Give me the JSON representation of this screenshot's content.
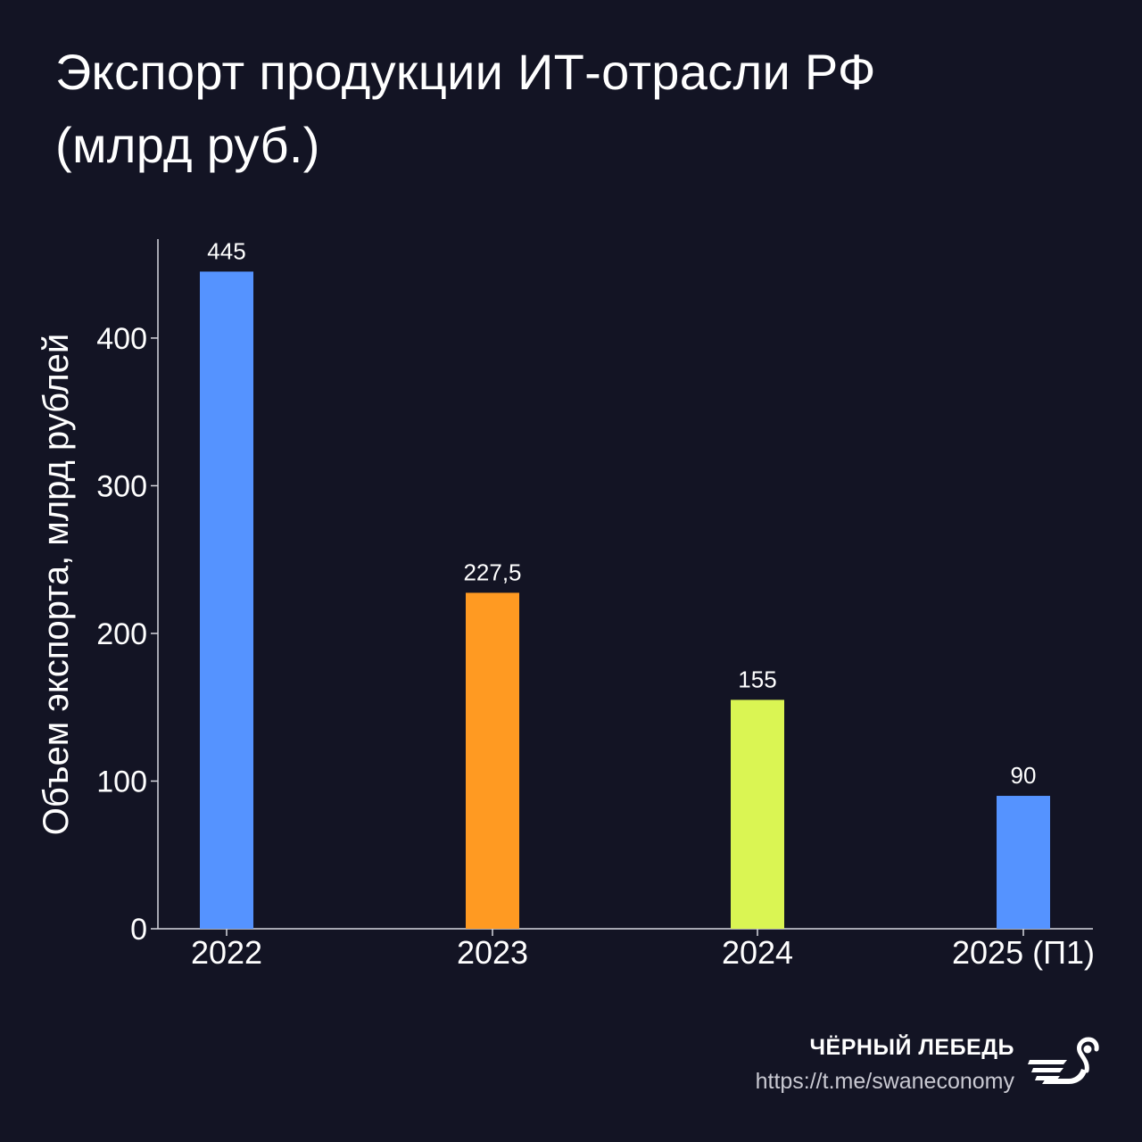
{
  "title": {
    "line1": "Экспорт продукции ИТ-отрасли РФ",
    "line2": "(млрд руб.)"
  },
  "chart_data": {
    "type": "bar",
    "title": "Экспорт продукции ИТ-отрасли РФ (млрд руб.)",
    "xlabel": "",
    "ylabel": "Объем экспорта, млрд рублей",
    "categories": [
      "2022",
      "2023",
      "2024",
      "2025 (П1)"
    ],
    "values": [
      445,
      227.5,
      155,
      90
    ],
    "value_labels": [
      "445",
      "227,5",
      "155",
      "90"
    ],
    "bar_colors": [
      "#5593FF",
      "#FF9A22",
      "#DAF553",
      "#5593FF"
    ],
    "yticks": [
      "0",
      "100",
      "200",
      "300",
      "400"
    ],
    "ylim": [
      0,
      467
    ],
    "grid": false,
    "legend": "none"
  },
  "brand": {
    "name": "ЧЁРНЫЙ ЛЕБЕДЬ",
    "url": "https://t.me/swaneconomy",
    "logo_icon": "swan-logo-icon"
  },
  "colors": {
    "background": "#131424",
    "text": "#FFFFFF",
    "muted_text": "#C9C9D2",
    "axis": "#D8D8E0"
  }
}
